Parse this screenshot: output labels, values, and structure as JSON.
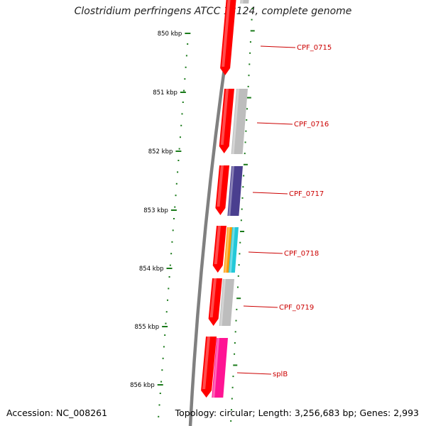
{
  "title": "Clostridium perfringens ATCC 13124, complete genome",
  "footer": {
    "accession": "Accession: NC_008261",
    "summary": "Topology: circular; Length: 3,256,683 bp; Genes: 2,993"
  },
  "ruler": {
    "labels": [
      "850 kbp",
      "851 kbp",
      "852 kbp",
      "853 kbp",
      "854 kbp",
      "855 kbp",
      "856 kbp"
    ]
  },
  "genes": [
    {
      "name": "CPF_0715",
      "color": "#ff0000"
    },
    {
      "name": "CPF_0716",
      "color": "#ff0000"
    },
    {
      "name": "CPF_0717",
      "color": "#ff0000"
    },
    {
      "name": "CPF_0718",
      "color": "#ff0000"
    },
    {
      "name": "CPF_0719",
      "color": "#ff0000"
    },
    {
      "name": "splB",
      "color": "#ff0000"
    }
  ],
  "colors": {
    "ruler": "#1a7a1a",
    "backbone": "#808080",
    "label": "#cc0000",
    "gray_feature": "#bdbdbd",
    "purple_feature": "#4a3f8f",
    "orange_feature": "#ff9900",
    "cyan_feature": "#22c8d8",
    "pink_feature": "#ff1493"
  }
}
